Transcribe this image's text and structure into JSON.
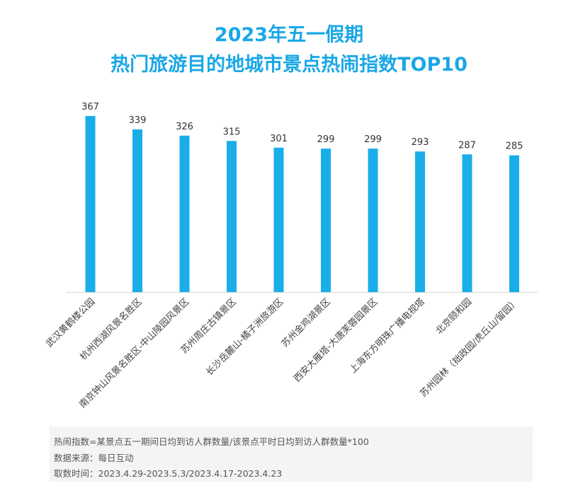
{
  "title": {
    "line1": "2023年五一假期",
    "line2": "热门旅游目的地城市景点热闹指数TOP10"
  },
  "chart_data": {
    "type": "bar",
    "categories": [
      "武汉黄鹤楼公园",
      "杭州西湖风景名胜区",
      "南京钟山风景名胜区-中山陵园风景区",
      "苏州周庄古镇景区",
      "长沙岳麓山-橘子洲旅游区",
      "苏州金鸡湖景区",
      "西安大雁塔-大唐芙蓉园景区",
      "上海东方明珠广播电视塔",
      "北京颐和园",
      "苏州园林（拙政园/虎丘山/留园）"
    ],
    "values": [
      367,
      339,
      326,
      315,
      301,
      299,
      299,
      293,
      287,
      285
    ],
    "ylim": [
      0,
      400
    ],
    "bar_color": "#19aee8",
    "grid": false
  },
  "notes": {
    "definition": "热闹指数=某景点五一期间日均到访人群数量/该景点平时日均到访人群数量*100",
    "source": "数据来源：每日互动",
    "period": "取数时间：2023.4.29-2023.5.3/2023.4.17-2023.4.23"
  }
}
